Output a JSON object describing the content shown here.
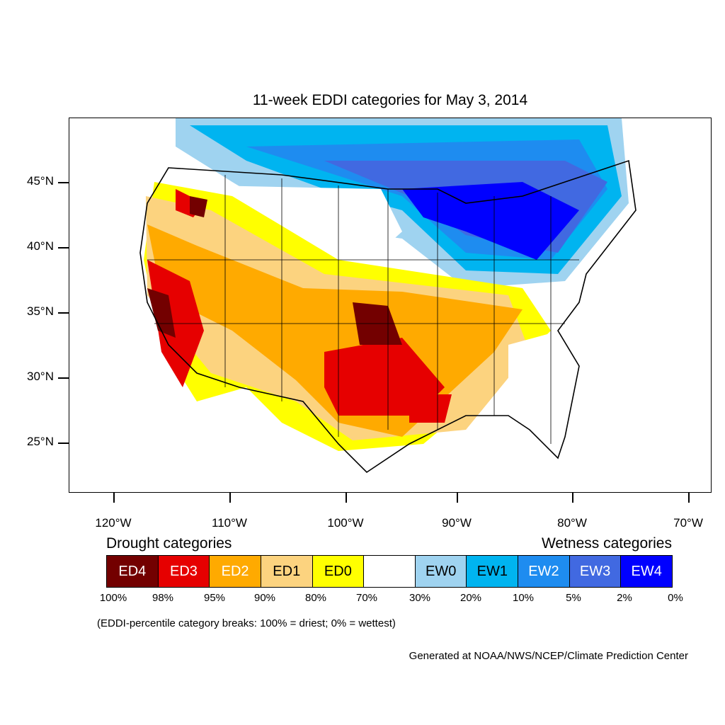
{
  "title": "11-week EDDI categories for May 3, 2014",
  "lat_labels": [
    "45°N",
    "40°N",
    "35°N",
    "30°N",
    "25°N"
  ],
  "lon_labels": [
    "120°W",
    "110°W",
    "100°W",
    "90°W",
    "80°W",
    "70°W"
  ],
  "legend": {
    "drought_heading": "Drought categories",
    "wetness_heading": "Wetness categories",
    "categories": [
      {
        "label": "ED4",
        "color": "#730000",
        "text_color": "#ffffff"
      },
      {
        "label": "ED3",
        "color": "#e60000",
        "text_color": "#ffffff"
      },
      {
        "label": "ED2",
        "color": "#ffaa00",
        "text_color": "#ffffff"
      },
      {
        "label": "ED1",
        "color": "#fcd37f",
        "text_color": "#000000"
      },
      {
        "label": "ED0",
        "color": "#ffff00",
        "text_color": "#000000"
      },
      {
        "label": "",
        "color": "#ffffff",
        "text_color": "#000000"
      },
      {
        "label": "EW0",
        "color": "#9fd3f0",
        "text_color": "#000000"
      },
      {
        "label": "EW1",
        "color": "#00b4f0",
        "text_color": "#000000"
      },
      {
        "label": "EW2",
        "color": "#1e8cf0",
        "text_color": "#ffffff"
      },
      {
        "label": "EW3",
        "color": "#4169e1",
        "text_color": "#ffffff"
      },
      {
        "label": "EW4",
        "color": "#0000ff",
        "text_color": "#ffffff"
      }
    ],
    "percentiles": [
      "100%",
      "98%",
      "95%",
      "90%",
      "80%",
      "70%",
      "30%",
      "20%",
      "10%",
      "5%",
      "2%",
      "0%"
    ]
  },
  "note": "(EDDI-percentile category breaks: 100% = driest; 0% = wettest)",
  "credit": "Generated at NOAA/NWS/NCEP/Climate Prediction Center"
}
